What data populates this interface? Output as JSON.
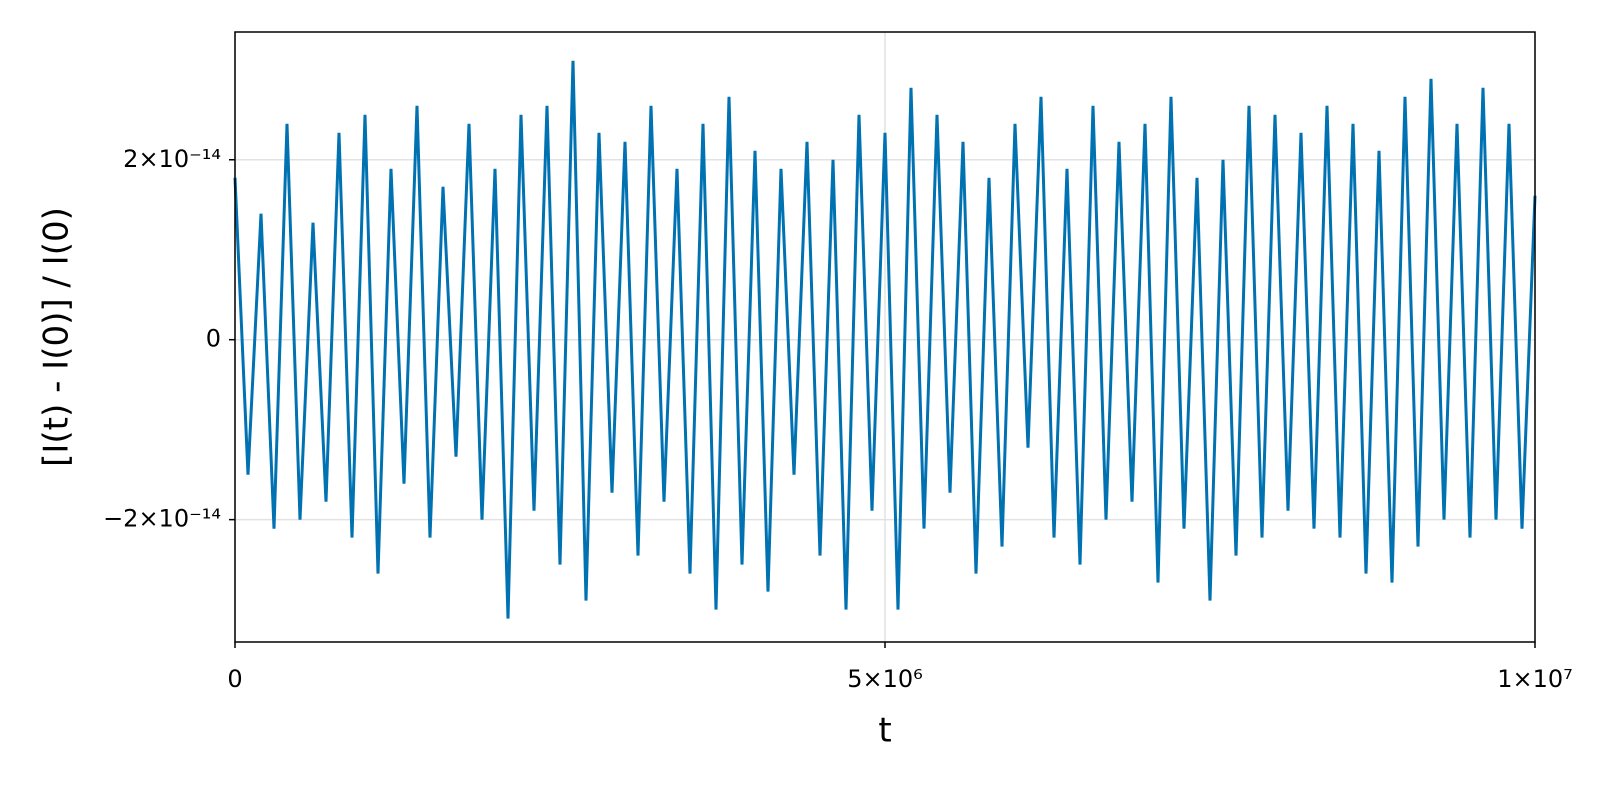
{
  "chart_data": {
    "type": "line",
    "xlabel": "t",
    "ylabel": "[I(t) - I(0)] / I(0)",
    "color": "#0072b2",
    "grid": true,
    "xlim": [
      0,
      10000000
    ],
    "ylim": [
      -3.36e-14,
      3.42e-14
    ],
    "xticks": [
      0,
      {
        "value": 5000000,
        "label": "5×10⁶"
      },
      {
        "value": 10000000,
        "label": "1×10⁷"
      }
    ],
    "yticks": [
      {
        "value": -2e-14,
        "label": "−2×10⁻¹⁴"
      },
      0,
      {
        "value": 2e-14,
        "label": "2×10⁻¹⁴"
      }
    ],
    "x": [
      0,
      100000,
      200000,
      300000,
      400000,
      500000,
      600000,
      700000,
      800000,
      900000,
      1000000,
      1100000,
      1200000,
      1300000,
      1400000,
      1500000,
      1600000,
      1700000,
      1800000,
      1900000,
      2000000,
      2100000,
      2200000,
      2300000,
      2400000,
      2500000,
      2600000,
      2700000,
      2800000,
      2900000,
      3000000,
      3100000,
      3200000,
      3300000,
      3400000,
      3500000,
      3600000,
      3700000,
      3800000,
      3900000,
      4000000,
      4100000,
      4200000,
      4300000,
      4400000,
      4500000,
      4600000,
      4700000,
      4800000,
      4900000,
      5000000,
      5100000,
      5200000,
      5300000,
      5400000,
      5500000,
      5600000,
      5700000,
      5800000,
      5900000,
      6000000,
      6100000,
      6200000,
      6300000,
      6400000,
      6500000,
      6600000,
      6700000,
      6800000,
      6900000,
      7000000,
      7100000,
      7200000,
      7300000,
      7400000,
      7500000,
      7600000,
      7700000,
      7800000,
      7900000,
      8000000,
      8100000,
      8200000,
      8300000,
      8400000,
      8500000,
      8600000,
      8700000,
      8800000,
      8900000,
      9000000,
      9100000,
      9200000,
      9300000,
      9400000,
      9500000,
      9600000,
      9700000,
      9800000,
      9900000,
      10000000
    ],
    "values": [
      1.8e-14,
      -1.5e-14,
      1.4e-14,
      -2.1e-14,
      2.4e-14,
      -2e-14,
      1.3e-14,
      -1.8e-14,
      2.3e-14,
      -2.2e-14,
      2.5e-14,
      -2.6e-14,
      1.9e-14,
      -1.6e-14,
      2.6e-14,
      -2.2e-14,
      1.7e-14,
      -1.3e-14,
      2.4e-14,
      -2e-14,
      1.9e-14,
      -3.1e-14,
      2.5e-14,
      -1.9e-14,
      2.6e-14,
      -2.5e-14,
      3.1e-14,
      -2.9e-14,
      2.3e-14,
      -1.7e-14,
      2.2e-14,
      -2.4e-14,
      2.6e-14,
      -1.8e-14,
      1.9e-14,
      -2.6e-14,
      2.4e-14,
      -3e-14,
      2.7e-14,
      -2.5e-14,
      2.1e-14,
      -2.8e-14,
      1.9e-14,
      -1.5e-14,
      2.2e-14,
      -2.4e-14,
      2e-14,
      -3e-14,
      2.5e-14,
      -1.9e-14,
      2.3e-14,
      -3e-14,
      2.8e-14,
      -2.1e-14,
      2.5e-14,
      -1.7e-14,
      2.2e-14,
      -2.6e-14,
      1.8e-14,
      -2.3e-14,
      2.4e-14,
      -1.2e-14,
      2.7e-14,
      -2.2e-14,
      1.9e-14,
      -2.5e-14,
      2.6e-14,
      -2e-14,
      2.2e-14,
      -1.8e-14,
      2.4e-14,
      -2.7e-14,
      2.7e-14,
      -2.1e-14,
      1.8e-14,
      -2.9e-14,
      2e-14,
      -2.4e-14,
      2.6e-14,
      -2.2e-14,
      2.5e-14,
      -1.9e-14,
      2.3e-14,
      -2.1e-14,
      2.6e-14,
      -2.2e-14,
      2.4e-14,
      -2.6e-14,
      2.1e-14,
      -2.7e-14,
      2.7e-14,
      -2.3e-14,
      2.9e-14,
      -2e-14,
      2.4e-14,
      -2.2e-14,
      2.8e-14,
      -2e-14,
      2.4e-14,
      -2.1e-14,
      1.6e-14
    ]
  }
}
